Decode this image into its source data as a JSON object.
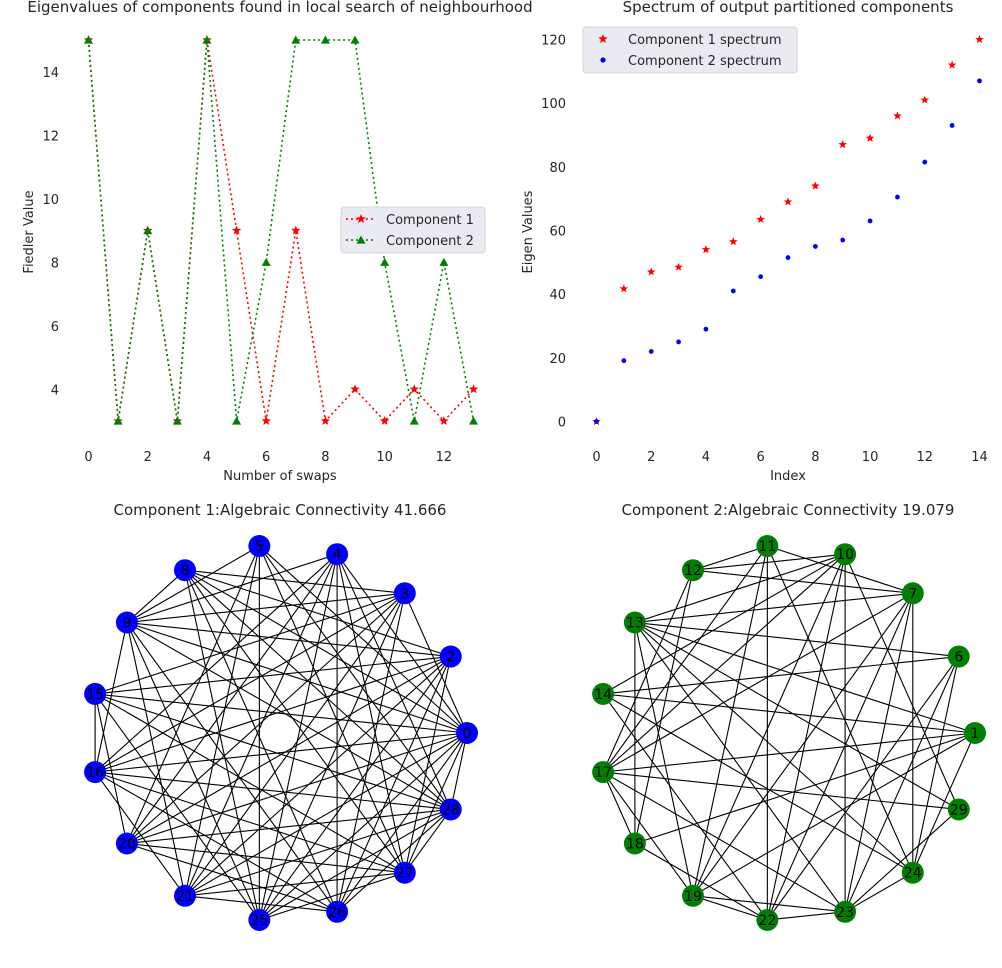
{
  "colors": {
    "component1": "#ff0000",
    "component2": "#008000",
    "node1": "#0000ff",
    "node2": "#008000",
    "spectrum2": "#0000ff",
    "legend_bg": "#eaeaf2",
    "edge": "#000000"
  },
  "chart_data": [
    {
      "type": "line",
      "title": "Eigenvalues of components found in local search of neighbourhood",
      "xlabel": "Number of swaps",
      "ylabel": "Fiedler Value",
      "x": [
        0,
        1,
        2,
        3,
        4,
        5,
        6,
        7,
        8,
        9,
        10,
        11,
        12,
        13
      ],
      "xticks": [
        "0",
        "2",
        "4",
        "6",
        "8",
        "10",
        "12"
      ],
      "yticks": [
        "4",
        "6",
        "8",
        "10",
        "12",
        "14"
      ],
      "xlim": [
        -0.65,
        13.6
      ],
      "ylim": [
        2.4,
        15.6
      ],
      "grid": false,
      "legend": "center-right",
      "series": [
        {
          "name": "Component 1",
          "marker": "star",
          "values": [
            15,
            3,
            9,
            3,
            15,
            9,
            3,
            9,
            3,
            4,
            3,
            4,
            3,
            4
          ]
        },
        {
          "name": "Component 2",
          "marker": "triangle",
          "values": [
            15,
            3,
            9,
            3,
            15,
            3,
            8,
            15,
            15,
            15,
            8,
            3,
            8,
            3
          ]
        }
      ]
    },
    {
      "type": "scatter",
      "title": "Spectrum of output partitioned components",
      "xlabel": "Index",
      "ylabel": "Eigen Values",
      "xticks": [
        "0",
        "2",
        "4",
        "6",
        "8",
        "10",
        "12",
        "14"
      ],
      "yticks": [
        "0",
        "20",
        "40",
        "60",
        "80",
        "100",
        "120"
      ],
      "xlim": [
        -0.7,
        14.3
      ],
      "ylim": [
        -6,
        126
      ],
      "grid": false,
      "legend": "top-left",
      "series": [
        {
          "name": "Component 1 spectrum",
          "marker": "star",
          "x": [
            0,
            1,
            2,
            3,
            4,
            5,
            6,
            7,
            8,
            9,
            10,
            11,
            12,
            13,
            14
          ],
          "values": [
            0,
            41.7,
            47,
            48.5,
            54,
            56.5,
            63.5,
            69,
            74,
            87,
            89,
            96,
            101,
            112,
            120
          ]
        },
        {
          "name": "Component 2 spectrum",
          "marker": "dot",
          "x": [
            0,
            1,
            2,
            3,
            4,
            5,
            6,
            7,
            8,
            9,
            10,
            11,
            12,
            13,
            14
          ],
          "values": [
            0,
            19.1,
            22,
            25,
            29,
            41,
            45.5,
            51.5,
            55,
            57,
            63,
            70.5,
            81.5,
            93,
            107
          ]
        }
      ]
    },
    {
      "type": "network",
      "title": "Component 1:Algebraic Connectivity 41.666",
      "nodes": [
        "0",
        "2",
        "3",
        "4",
        "5",
        "8",
        "9",
        "15",
        "16",
        "20",
        "21",
        "25",
        "26",
        "27",
        "28"
      ],
      "edges": [
        [
          "5",
          "25"
        ],
        [
          "4",
          "26"
        ],
        [
          "5",
          "21"
        ],
        [
          "5",
          "27"
        ],
        [
          "5",
          "28"
        ],
        [
          "5",
          "0"
        ],
        [
          "5",
          "20"
        ],
        [
          "5",
          "9"
        ],
        [
          "8",
          "0"
        ],
        [
          "8",
          "2"
        ],
        [
          "8",
          "25"
        ],
        [
          "8",
          "26"
        ],
        [
          "8",
          "3"
        ],
        [
          "8",
          "9"
        ],
        [
          "8",
          "27"
        ],
        [
          "8",
          "28"
        ],
        [
          "4",
          "25"
        ],
        [
          "4",
          "21"
        ],
        [
          "4",
          "20"
        ],
        [
          "4",
          "16"
        ],
        [
          "4",
          "0"
        ],
        [
          "4",
          "9"
        ],
        [
          "4",
          "27"
        ],
        [
          "4",
          "28"
        ],
        [
          "3",
          "25"
        ],
        [
          "3",
          "20"
        ],
        [
          "3",
          "16"
        ],
        [
          "3",
          "9"
        ],
        [
          "3",
          "26"
        ],
        [
          "3",
          "21"
        ],
        [
          "3",
          "15"
        ],
        [
          "3",
          "0"
        ],
        [
          "2",
          "15"
        ],
        [
          "2",
          "16"
        ],
        [
          "2",
          "21"
        ],
        [
          "2",
          "25"
        ],
        [
          "2",
          "26"
        ],
        [
          "2",
          "27"
        ],
        [
          "2",
          "9"
        ],
        [
          "2",
          "20"
        ],
        [
          "9",
          "0"
        ],
        [
          "9",
          "26"
        ],
        [
          "9",
          "25"
        ],
        [
          "9",
          "28"
        ],
        [
          "9",
          "21"
        ],
        [
          "9",
          "16"
        ],
        [
          "15",
          "0"
        ],
        [
          "15",
          "16"
        ],
        [
          "15",
          "20"
        ],
        [
          "15",
          "25"
        ],
        [
          "15",
          "27"
        ],
        [
          "15",
          "28"
        ],
        [
          "16",
          "0"
        ],
        [
          "16",
          "28"
        ],
        [
          "16",
          "26"
        ],
        [
          "16",
          "27"
        ],
        [
          "16",
          "21"
        ],
        [
          "20",
          "0"
        ],
        [
          "20",
          "28"
        ],
        [
          "20",
          "27"
        ],
        [
          "20",
          "26"
        ],
        [
          "21",
          "27"
        ],
        [
          "21",
          "28"
        ],
        [
          "21",
          "0"
        ],
        [
          "21",
          "26"
        ],
        [
          "25",
          "27"
        ],
        [
          "25",
          "28"
        ],
        [
          "25",
          "0"
        ],
        [
          "26",
          "0"
        ],
        [
          "26",
          "28"
        ],
        [
          "27",
          "0"
        ],
        [
          "27",
          "28"
        ],
        [
          "28",
          "0"
        ]
      ]
    },
    {
      "type": "network",
      "title": "Component 2:Algebraic Connectivity 19.079",
      "nodes": [
        "1",
        "6",
        "7",
        "10",
        "11",
        "12",
        "13",
        "14",
        "17",
        "18",
        "19",
        "22",
        "23",
        "24",
        "29"
      ],
      "edges": [
        [
          "11",
          "22"
        ],
        [
          "11",
          "7"
        ],
        [
          "11",
          "12"
        ],
        [
          "11",
          "17"
        ],
        [
          "11",
          "24"
        ],
        [
          "11",
          "19"
        ],
        [
          "10",
          "12"
        ],
        [
          "10",
          "13"
        ],
        [
          "10",
          "14"
        ],
        [
          "10",
          "17"
        ],
        [
          "10",
          "19"
        ],
        [
          "10",
          "22"
        ],
        [
          "10",
          "23"
        ],
        [
          "10",
          "29"
        ],
        [
          "12",
          "7"
        ],
        [
          "12",
          "17"
        ],
        [
          "12",
          "18"
        ],
        [
          "7",
          "13"
        ],
        [
          "7",
          "17"
        ],
        [
          "7",
          "19"
        ],
        [
          "7",
          "23"
        ],
        [
          "7",
          "22"
        ],
        [
          "7",
          "24"
        ],
        [
          "6",
          "13"
        ],
        [
          "6",
          "24"
        ],
        [
          "6",
          "22"
        ],
        [
          "6",
          "23"
        ],
        [
          "13",
          "1"
        ],
        [
          "13",
          "29"
        ],
        [
          "13",
          "23"
        ],
        [
          "13",
          "24"
        ],
        [
          "13",
          "19"
        ],
        [
          "13",
          "18"
        ],
        [
          "14",
          "1"
        ],
        [
          "14",
          "22"
        ],
        [
          "14",
          "24"
        ],
        [
          "14",
          "6"
        ],
        [
          "17",
          "1"
        ],
        [
          "17",
          "29"
        ],
        [
          "17",
          "23"
        ],
        [
          "17",
          "18"
        ],
        [
          "17",
          "19"
        ],
        [
          "18",
          "1"
        ],
        [
          "18",
          "22"
        ],
        [
          "19",
          "23"
        ],
        [
          "19",
          "22"
        ],
        [
          "19",
          "1"
        ],
        [
          "22",
          "23"
        ],
        [
          "24",
          "23"
        ],
        [
          "24",
          "1"
        ],
        [
          "29",
          "23"
        ]
      ]
    }
  ]
}
